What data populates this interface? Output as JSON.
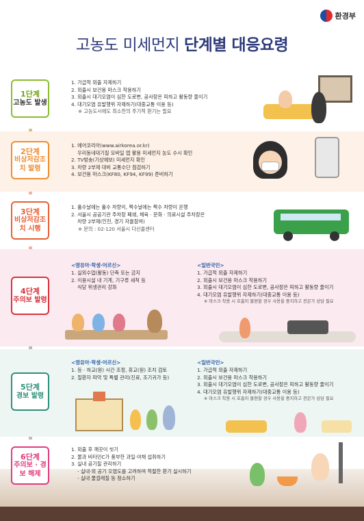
{
  "ministry": {
    "name": "환경부",
    "logo_icon": "taegeuk-icon"
  },
  "title": {
    "normal": "고농도 미세먼지 ",
    "bold": "단계별 대응요령"
  },
  "stages": [
    {
      "step": "1단계",
      "name": "고농도 발생",
      "color": "#8cbb2a",
      "items": [
        "1. 가급적 외출 자제하기",
        "2. 외출시 보건용 마스크 착용하기",
        "3. 외출시 대기오염이 심한 도로변, 공사장은 피하고 활동량 줄이기",
        "4. 대기오염 유발행위 자제하기(대중교통 이용 등)"
      ],
      "note": "※ 고농도시에도 최소한의 주기적 환기는 필요"
    },
    {
      "step": "2단계",
      "name": "비상저감조치 발령",
      "color": "#ef8b2c",
      "items": [
        "1. 에어코리아(www.airkorea.or.kr)",
        "    우리동네대기질 모바일 앱 활용 미세먼지 농도 수시 확인",
        "2. TV방송(기상예보) 미세먼지 확인",
        "3. 차량 2부제 대비 교통수단 점검하기",
        "4. 보건용 마스크(KF80, KF94, KF99) 준비하기"
      ],
      "note": ""
    },
    {
      "step": "3단계",
      "name": "비상저감조치 시행",
      "color": "#e85e32",
      "items": [
        "1. 홀수날에는 홀수 차량이, 짝수날에는 짝수 차량이 운행",
        "2. 서울시 공공기관 주차장 폐쇄, 체육 · 문화 · 의료시설 주차장은",
        "    차량 2부제(인천, 경기 자율참여)"
      ],
      "note": "※ 문의 : 02-120 서울시 다산콜센터"
    },
    {
      "step": "4단계",
      "name": "주의보 발령",
      "color": "#d8303b",
      "left_title": "<영유아·학생·어르신>",
      "left_items": [
        "1. 실외수업(활동) 단축 또는 금지",
        "2. 이용시설 내 기계, 기구류 세척 등",
        "    식당 위생관리 강화"
      ],
      "right_title": "<일반국민>",
      "right_items": [
        "1. 가급적 외출 자제하기",
        "2. 외출시 보건용 마스크 착용하기",
        "3. 외출시 대기오염이 심한 도로변, 공사장은 피하고 활동량 줄이기",
        "4. 대기오염 유발행위 자제하기(대중교통 이용 등)"
      ],
      "note": "※ 마스크 착용 시 호흡이 불편할 경우 사용을 중지하고 전문가 상담 필요"
    },
    {
      "step": "5단계",
      "name": "경보 발령",
      "color": "#2c8f7a",
      "left_title": "<영유아·학생·어르신>",
      "left_items": [
        "1. 등 · 하교(원) 시간 조정, 휴교(원) 조치 검토",
        "2. 질환자 파악 및 특별 관리(진료, 조기귀가 등)"
      ],
      "right_title": "<일반국민>",
      "right_items": [
        "1. 가급적 외출 자제하기",
        "2. 외출시 보건용 마스크 착용하기",
        "3. 외출시 대기오염이 심한 도로변, 공사장은 피하고 활동량 줄이기",
        "4. 대기오염 유발행위 자제하기(대중교통 이용 등)"
      ],
      "note": "※ 마스크 착용 시 호흡이 불편할 경우 사용을 중지하고 전문가 상담 필요"
    },
    {
      "step": "6단계",
      "name": "주의보 · 경보 해제",
      "color": "#e03a7e",
      "items": [
        "1. 외출 후 깨끗이 씻기",
        "2. 물과 비타민C가 풍부한 과일·야채 섭취하기",
        "3. 실내 공기질 관리하기",
        "    - 실내·외 공기 오염도를 고려하여 적절한 환기 실시하기",
        "    - 실내 물걸레질 등 청소하기"
      ],
      "note": ""
    }
  ]
}
